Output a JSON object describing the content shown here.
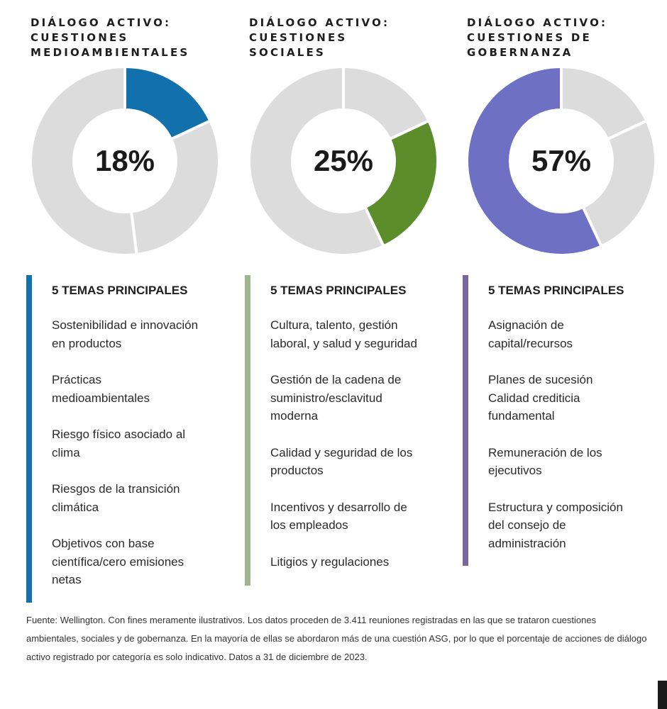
{
  "colors": {
    "environmental": "#1271ac",
    "social": "#5b8d2b",
    "governance": "#6e70c3",
    "remainder": "#dcdcdc",
    "bar_environmental": "#1271ac",
    "bar_social": "#a2b591",
    "bar_governance": "#75689c"
  },
  "chart_data": [
    {
      "type": "pie",
      "title": "DIÁLOGO ACTIVO:\nCUESTIONES\nMEDIOAMBIENTALES",
      "label": "18%",
      "segments": [
        {
          "name": "highlight",
          "values": [
            18
          ]
        },
        {
          "name": "remainder",
          "values": [
            30,
            52
          ]
        }
      ],
      "highlight_value": 18
    },
    {
      "type": "pie",
      "title": "DIÁLOGO ACTIVO:\nCUESTIONES\nSOCIALES",
      "label": "25%",
      "segments": [
        {
          "name": "remainder",
          "values": [
            18
          ]
        },
        {
          "name": "highlight",
          "values": [
            25
          ]
        },
        {
          "name": "remainder",
          "values": [
            57
          ]
        }
      ],
      "highlight_value": 25
    },
    {
      "type": "pie",
      "title": "DIÁLOGO ACTIVO:\nCUESTIONES DE\nGOBERNANZA",
      "label": "57%",
      "segments": [
        {
          "name": "remainder",
          "values": [
            18,
            25
          ]
        },
        {
          "name": "highlight",
          "values": [
            57
          ]
        }
      ],
      "highlight_value": 57
    }
  ],
  "columns": [
    {
      "heading": "5 TEMAS PRINCIPALES",
      "topics": [
        "Sostenibilidad e innovación\nen productos",
        "Prácticas\nmedioambientales",
        "Riesgo físico asociado al\nclima",
        "Riesgos de la transición\nclimática",
        "Objetivos con base\ncientífica/cero emisiones\nnetas"
      ]
    },
    {
      "heading": "5 TEMAS PRINCIPALES",
      "topics": [
        "Cultura, talento, gestión\nlaboral, y salud y seguridad",
        "Gestión de la cadena de\nsuministro/esclavitud\nmoderna",
        "Calidad y seguridad de los\nproductos",
        "Incentivos y desarrollo de\nlos empleados",
        "Litigios y regulaciones"
      ]
    },
    {
      "heading": "5 TEMAS PRINCIPALES",
      "topics": [
        "Asignación de\ncapital/recursos",
        "Planes de sucesión\nCalidad crediticia\nfundamental",
        "Remuneración de los\nejecutivos",
        "Estructura y composición\ndel consejo de\nadministración"
      ]
    }
  ],
  "source": "Fuente: Wellington. Con fines meramente ilustrativos. Los datos proceden de 3.411 reuniones registradas en las que se trataron cuestiones ambientales, sociales y de gobernanza. En la mayoría de ellas se abordaron más de una cuestión ASG, por lo que el porcentaje de acciones de diálogo activo registrado por categoría es solo indicativo. Datos a 31 de diciembre de 2023."
}
